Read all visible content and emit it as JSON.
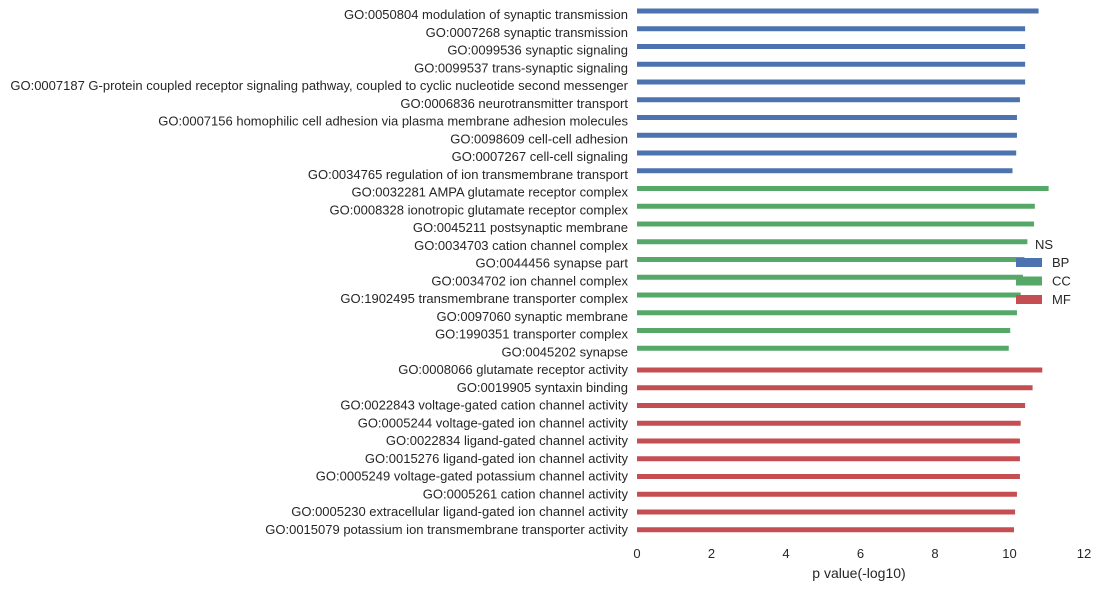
{
  "chart_data": {
    "type": "bar",
    "orientation": "horizontal",
    "xlabel": "p value(-log10)",
    "ylabel": "",
    "title": "",
    "xlim": [
      0,
      12
    ],
    "xticks": [
      0,
      2,
      4,
      6,
      8,
      10,
      12
    ],
    "grid": false,
    "legend": {
      "title": "NS",
      "placement": "center-right",
      "entries": [
        "BP",
        "CC",
        "MF"
      ]
    },
    "colors": {
      "BP": "#4c72b0",
      "CC": "#55a868",
      "MF": "#c44e52"
    },
    "categories": [
      "GO:0050804 modulation of synaptic transmission",
      "GO:0007268 synaptic transmission",
      "GO:0099536 synaptic signaling",
      "GO:0099537 trans-synaptic signaling",
      "GO:0007187 G-protein coupled receptor signaling pathway, coupled to cyclic nucleotide second messenger",
      "GO:0006836 neurotransmitter transport",
      "GO:0007156 homophilic cell adhesion via plasma membrane adhesion molecules",
      "GO:0098609 cell-cell adhesion",
      "GO:0007267 cell-cell signaling",
      "GO:0034765 regulation of ion transmembrane transport",
      "GO:0032281 AMPA glutamate receptor complex",
      "GO:0008328 ionotropic glutamate receptor complex",
      "GO:0045211 postsynaptic membrane",
      "GO:0034703 cation channel complex",
      "GO:0044456 synapse part",
      "GO:0034702 ion channel complex",
      "GO:1902495 transmembrane transporter complex",
      "GO:0097060 synaptic membrane",
      "GO:1990351 transporter complex",
      "GO:0045202 synapse",
      "GO:0008066 glutamate receptor activity",
      "GO:0019905 syntaxin binding",
      "GO:0022843 voltage-gated cation channel activity",
      "GO:0005244 voltage-gated ion channel activity",
      "GO:0022834 ligand-gated channel activity",
      "GO:0015276 ligand-gated ion channel activity",
      "GO:0005249 voltage-gated potassium channel activity",
      "GO:0005261 cation channel activity",
      "GO:0005230 extracellular ligand-gated ion channel activity",
      "GO:0015079 potassium ion transmembrane transporter activity"
    ],
    "groups": [
      "BP",
      "BP",
      "BP",
      "BP",
      "BP",
      "BP",
      "BP",
      "BP",
      "BP",
      "BP",
      "CC",
      "CC",
      "CC",
      "CC",
      "CC",
      "CC",
      "CC",
      "CC",
      "CC",
      "CC",
      "MF",
      "MF",
      "MF",
      "MF",
      "MF",
      "MF",
      "MF",
      "MF",
      "MF",
      "MF"
    ],
    "values": [
      10.78,
      10.42,
      10.42,
      10.42,
      10.42,
      10.28,
      10.2,
      10.2,
      10.18,
      10.08,
      11.05,
      10.68,
      10.66,
      10.48,
      10.4,
      10.36,
      10.3,
      10.2,
      10.02,
      9.98,
      10.88,
      10.62,
      10.42,
      10.3,
      10.28,
      10.28,
      10.28,
      10.2,
      10.15,
      10.12
    ]
  }
}
